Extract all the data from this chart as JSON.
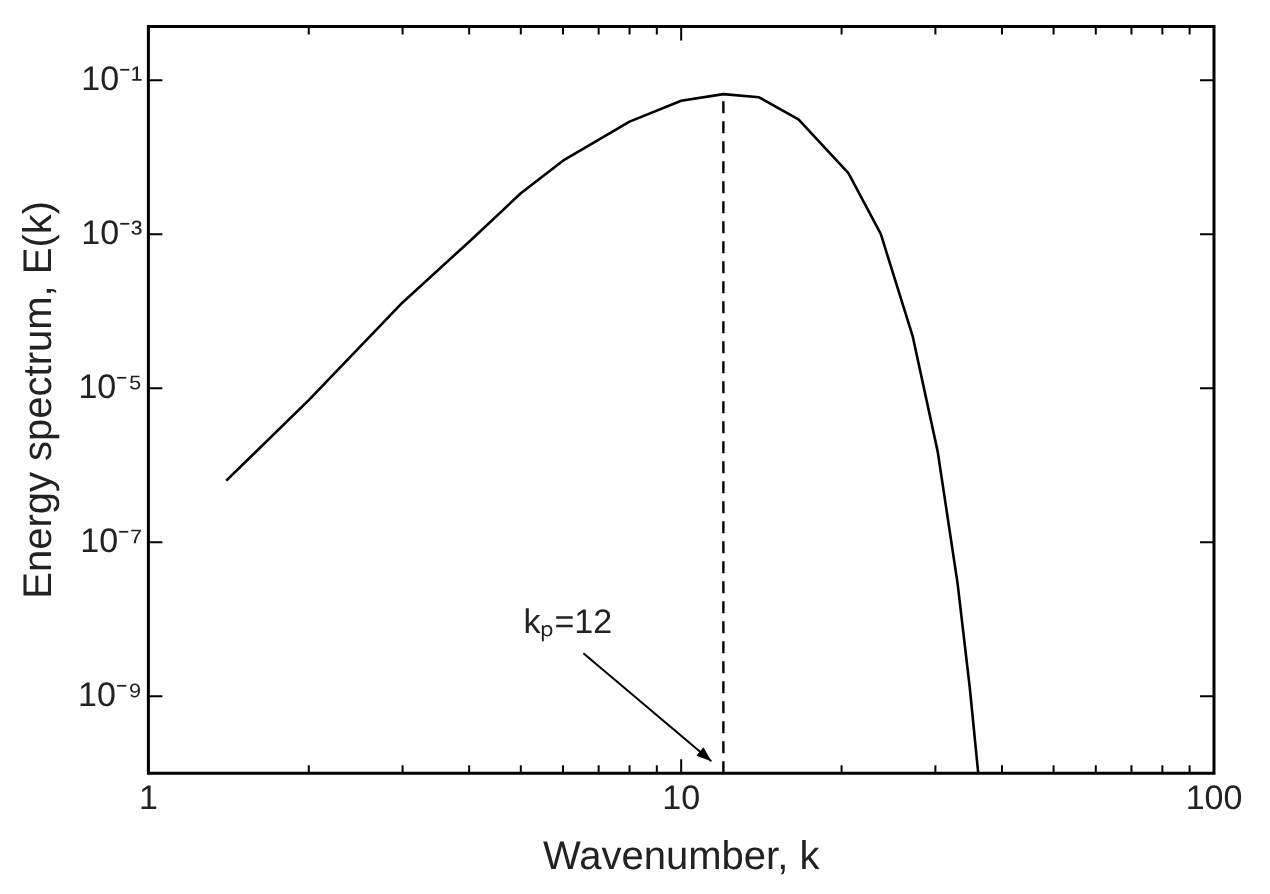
{
  "chart_data": {
    "type": "line",
    "xlabel": "Wavenumber, k",
    "ylabel": "Energy spectrum, E(k)",
    "log": "xy",
    "grid": false,
    "legend": false,
    "marker": "none",
    "line_style": "solid",
    "xlim": [
      1,
      100
    ],
    "xticks": [
      1,
      {
        "value": 2,
        "label": null
      },
      {
        "value": 3,
        "label": null
      },
      {
        "value": 4,
        "label": null
      },
      {
        "value": 5,
        "label": null
      },
      {
        "value": 6,
        "label": null
      },
      {
        "value": 7,
        "label": null
      },
      {
        "value": 8,
        "label": null
      },
      {
        "value": 9,
        "label": null
      },
      10,
      {
        "value": 20,
        "label": null
      },
      {
        "value": 30,
        "label": null
      },
      {
        "value": 40,
        "label": null
      },
      {
        "value": 50,
        "label": null
      },
      {
        "value": 60,
        "label": null
      },
      {
        "value": 70,
        "label": null
      },
      {
        "value": 80,
        "label": null
      },
      {
        "value": 90,
        "label": null
      },
      100
    ],
    "ylim": [
      1e-10,
      0.5
    ],
    "yticks": [
      {
        "value": 1e-09,
        "label": "10⁻⁹"
      },
      {
        "value": 1e-07,
        "label": "10⁻⁷"
      },
      {
        "value": 1e-05,
        "label": "10⁻⁵"
      },
      {
        "value": 0.001,
        "label": "10⁻³"
      },
      {
        "value": 0.1,
        "label": "10⁻¹"
      }
    ],
    "series": [
      {
        "color": "#000000",
        "x": [
          1.4,
          2,
          3,
          4,
          5,
          6,
          8,
          10,
          12,
          14,
          16.6,
          20.6,
          23.7,
          27.2,
          30.3,
          33,
          34.8,
          36.1
        ],
        "values": [
          6.3e-07,
          7e-06,
          0.00013,
          0.0008,
          0.0034,
          0.009,
          0.029,
          0.054,
          0.066,
          0.06,
          0.031,
          0.0062,
          0.001,
          4.7e-05,
          1.5e-06,
          3e-08,
          1.3e-09,
          1e-10
        ]
      }
    ],
    "ref_lines": [
      {
        "axis": "x",
        "value": 12,
        "label": "kₚ=12",
        "line_style": "dashed",
        "color": "#000000"
      }
    ]
  }
}
